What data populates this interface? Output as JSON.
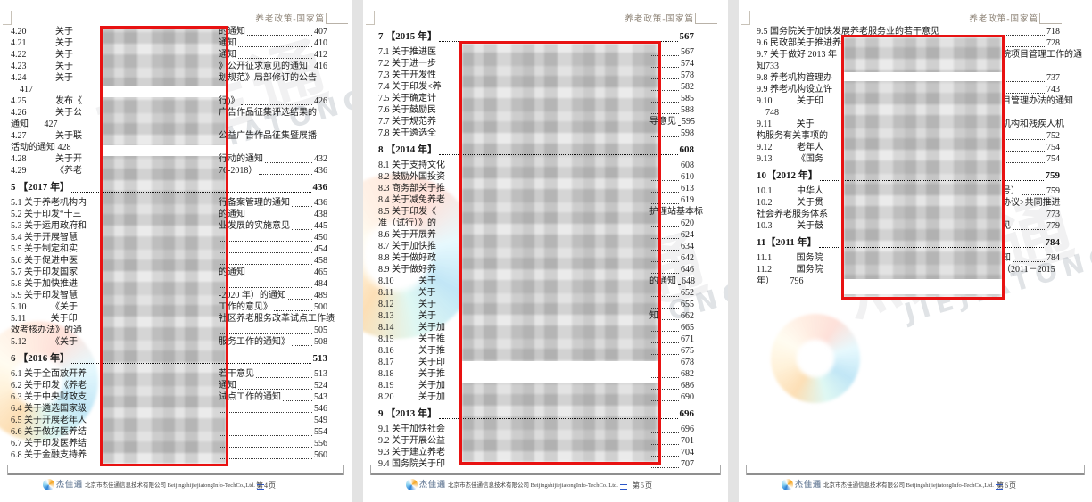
{
  "header_title": "养老政策-国家篇",
  "watermark": {
    "cn": "杰佳通",
    "en": "JIEJIATONG"
  },
  "footer": {
    "logo_cn": "杰佳通",
    "company": "北京市杰佳通信息技术有限公司 BeijingshijiejiatongInfo-TechCo.,Ltd."
  },
  "colors": {
    "annotation_red": "#e81212",
    "footer_link_blue": "#2b56c8",
    "header_gray": "#8b8174",
    "page_background": "#ffffff",
    "desktop_background": "#e3e3e3"
  },
  "pages": [
    {
      "page_label": "第4页",
      "rows": [
        {
          "t": "r",
          "l": "4.20             关于",
          "r": "的通知",
          "pg": "407"
        },
        {
          "t": "r",
          "l": "4.21             关于",
          "r": "通知",
          "pg": "410"
        },
        {
          "t": "r",
          "l": "4.22             关于",
          "r": "通知",
          "pg": "412"
        },
        {
          "t": "r",
          "l": "4.23             关于",
          "r": "》公开征求意见的通知",
          "pg": "416"
        },
        {
          "t": "r",
          "l": "4.24             关于",
          "r": "划规范》局部修订的公告",
          "pg": ""
        },
        {
          "t": "c",
          "l": "    417"
        },
        {
          "t": "r",
          "l": "4.25             发布《",
          "r": "行)》",
          "pg": "426"
        },
        {
          "t": "r",
          "l": "4.26             关于公",
          "r": "广告作品征集评选结果的",
          "pg": ""
        },
        {
          "t": "c",
          "l": "通知       427"
        },
        {
          "t": "r",
          "l": "4.27             关于联",
          "r": "公益广告作品征集暨展播",
          "pg": ""
        },
        {
          "t": "c",
          "l": "活动的通知 428"
        },
        {
          "t": "r",
          "l": "4.28             关于开",
          "r": "行动的通知",
          "pg": "432"
        },
        {
          "t": "r",
          "l": "4.29             《养老",
          "r": "76-2018）",
          "pg": "436"
        },
        {
          "t": "h",
          "l": "5 【2017 年】",
          "pg": "436"
        },
        {
          "t": "r",
          "l": "5.1 关于养老机构内",
          "r": "行备案管理的通知",
          "pg": "436"
        },
        {
          "t": "r",
          "l": "5.2 关于印发“十三",
          "r": "的通知",
          "pg": "438"
        },
        {
          "t": "r",
          "l": "5.3 关于运用政府和",
          "r": "业发展的实施意见",
          "pg": "445"
        },
        {
          "t": "r",
          "l": "5.4 关于开展智慧",
          "r": "",
          "pg": "450"
        },
        {
          "t": "r",
          "l": "5.5 关于制定和实",
          "r": "",
          "pg": "454"
        },
        {
          "t": "r",
          "l": "5.6 关于促进中医",
          "r": "",
          "pg": "458"
        },
        {
          "t": "r",
          "l": "5.7 关于印发国家",
          "r": "的通知",
          "pg": "465"
        },
        {
          "t": "r",
          "l": "5.8 关于加快推进",
          "r": "",
          "pg": "484"
        },
        {
          "t": "r",
          "l": "5.9 关于印发智慧",
          "r": "-2020 年）的通知",
          "pg": "489"
        },
        {
          "t": "r",
          "l": "5.10           《关于",
          "r": "工作的意见》",
          "pg": "500"
        },
        {
          "t": "r",
          "l": "5.11           关于印",
          "r": "社区养老服务改革试点工作绩",
          "pg": ""
        },
        {
          "t": "r",
          "l": "效考核办法》的通",
          "r": "",
          "pg": "505"
        },
        {
          "t": "r",
          "l": "5.12           《关于",
          "r": "服务工作的通知》",
          "pg": "508"
        },
        {
          "t": "h",
          "l": "6 【2016 年】",
          "pg": "513"
        },
        {
          "t": "r",
          "l": "6.1 关于全面放开养",
          "r": "若干意见",
          "pg": "513"
        },
        {
          "t": "r",
          "l": "6.2 关于印发《养老",
          "r": "通知",
          "pg": "524"
        },
        {
          "t": "r",
          "l": "6.3 关于中央财政支",
          "r": "试点工作的通知",
          "pg": "543"
        },
        {
          "t": "r",
          "l": "6.4 关于遴选国家级",
          "r": "",
          "pg": "546"
        },
        {
          "t": "r",
          "l": "6.5 关于开展老年人",
          "r": "",
          "pg": "549"
        },
        {
          "t": "r",
          "l": "6.6 关于做好医养结",
          "r": "",
          "pg": "554"
        },
        {
          "t": "r",
          "l": "6.7 关于印发医养结",
          "r": "",
          "pg": "556"
        },
        {
          "t": "r",
          "l": "6.8 关于金融支持养",
          "r": "",
          "pg": "560"
        }
      ]
    },
    {
      "page_label": "第5页",
      "rows": [
        {
          "t": "h",
          "l": "7 【2015 年】",
          "pg": "567"
        },
        {
          "t": "r",
          "l": "7.1 关于推进医",
          "r": "",
          "pg": "567"
        },
        {
          "t": "r",
          "l": "7.2 关于进一步",
          "r": "",
          "pg": "574"
        },
        {
          "t": "r",
          "l": "7.3 关于开发性",
          "r": "",
          "pg": "578"
        },
        {
          "t": "r",
          "l": "7.4 关于印发<养",
          "r": "",
          "pg": "582"
        },
        {
          "t": "r",
          "l": "7.5 关于确定计",
          "r": "",
          "pg": "585"
        },
        {
          "t": "r",
          "l": "7.6 关于鼓励民",
          "r": "",
          "pg": "588"
        },
        {
          "t": "r",
          "l": "7.7 关于规范养",
          "r": "导意见",
          "pg": "595"
        },
        {
          "t": "r",
          "l": "7.8 关于遴选全",
          "r": "",
          "pg": "598"
        },
        {
          "t": "h",
          "l": "8 【2014 年】",
          "pg": "608"
        },
        {
          "t": "r",
          "l": "8.1 关于支持文化",
          "r": "",
          "pg": "608"
        },
        {
          "t": "r",
          "l": "8.2 鼓励外国投资",
          "r": "",
          "pg": "610"
        },
        {
          "t": "r",
          "l": "8.3 商务部关于推",
          "r": "",
          "pg": "613"
        },
        {
          "t": "r",
          "l": "8.4 关于减免养老",
          "r": "",
          "pg": "619"
        },
        {
          "t": "r",
          "l": "8.5 关于印发《",
          "r": "护理站基本标",
          "pg": ""
        },
        {
          "t": "r",
          "l": "准（试行）》的",
          "r": "",
          "pg": "620"
        },
        {
          "t": "r",
          "l": "8.6 关于开展养",
          "r": "",
          "pg": "624"
        },
        {
          "t": "r",
          "l": "8.7 关于加快推",
          "r": "",
          "pg": "634"
        },
        {
          "t": "r",
          "l": "8.8 关于做好政",
          "r": "",
          "pg": "642"
        },
        {
          "t": "r",
          "l": "8.9 关于做好养",
          "r": "",
          "pg": "646"
        },
        {
          "t": "r",
          "l": "8.10           关于",
          "r": "的通知",
          "pg": "648"
        },
        {
          "t": "r",
          "l": "8.11           关于",
          "r": "",
          "pg": "652"
        },
        {
          "t": "r",
          "l": "8.12           关于",
          "r": "",
          "pg": "655"
        },
        {
          "t": "r",
          "l": "8.13           关于",
          "r": "知",
          "pg": "662"
        },
        {
          "t": "r",
          "l": "8.14           关于加",
          "r": "",
          "pg": "665"
        },
        {
          "t": "r",
          "l": "8.15           关于推",
          "r": "",
          "pg": "671"
        },
        {
          "t": "r",
          "l": "8.16           关于推",
          "r": "",
          "pg": "675"
        },
        {
          "t": "r",
          "l": "8.17           关于印",
          "r": "",
          "pg": "678"
        },
        {
          "t": "r",
          "l": "8.18           关于推",
          "r": "",
          "pg": "682"
        },
        {
          "t": "r",
          "l": "8.19           关于加",
          "r": "",
          "pg": "686"
        },
        {
          "t": "r",
          "l": "8.20           关于加",
          "r": "",
          "pg": "690"
        },
        {
          "t": "h",
          "l": "9 【2013 年】",
          "pg": "696"
        },
        {
          "t": "r",
          "l": "9.1 关于加快社会",
          "r": "",
          "pg": "696"
        },
        {
          "t": "r",
          "l": "9.2 关于开展公益",
          "r": "",
          "pg": "701"
        },
        {
          "t": "r",
          "l": "9.3 关于建立养老",
          "r": "",
          "pg": "704"
        },
        {
          "t": "r",
          "l": "9.4 国务院关于印",
          "r": "",
          "pg": "707"
        }
      ]
    },
    {
      "page_label": "第6页",
      "rows": [
        {
          "t": "f",
          "l": "9.5 国务院关于加快发展养老服务业的若干意见",
          "pg": "718"
        },
        {
          "t": "r",
          "l": "9.6 民政部关于推进养",
          "r": "",
          "pg": "728"
        },
        {
          "t": "r",
          "l": "9.7 关于做好 2013 年",
          "r": "院项目管理工作的通",
          "pg": ""
        },
        {
          "t": "c",
          "l": "知733"
        },
        {
          "t": "r",
          "l": "9.8 养老机构管理办",
          "r": "",
          "pg": "737"
        },
        {
          "t": "r",
          "l": "9.9 养老机构设立许",
          "r": "",
          "pg": "743"
        },
        {
          "t": "r",
          "l": "9.10           关于印",
          "r": "目管理办法的通知",
          "pg": ""
        },
        {
          "t": "c",
          "l": "    748"
        },
        {
          "t": "r",
          "l": "9.11           关于",
          "r": "机构和残疾人机",
          "pg": ""
        },
        {
          "t": "r",
          "l": "构服务有关事项的",
          "r": "",
          "pg": "752"
        },
        {
          "t": "r",
          "l": "9.12           老年人",
          "r": "",
          "pg": "754"
        },
        {
          "t": "r",
          "l": "9.13           《国务",
          "r": "",
          "pg": "754"
        },
        {
          "t": "h",
          "l": "10【2012 年】",
          "pg": "759"
        },
        {
          "t": "r",
          "l": "10.1           中华人",
          "r": "号）",
          "pg": "759"
        },
        {
          "t": "r",
          "l": "10.2           关于贯",
          "r": "协议>共同推进",
          "pg": ""
        },
        {
          "t": "r",
          "l": "社会养老服务体系",
          "r": "",
          "pg": "773"
        },
        {
          "t": "r",
          "l": "10.3           关于鼓",
          "r": "见",
          "pg": "779"
        },
        {
          "t": "h",
          "l": "11【2011 年】",
          "pg": "784"
        },
        {
          "t": "r",
          "l": "11.1           国务院",
          "r": "知",
          "pg": "784"
        },
        {
          "t": "r",
          "l": "11.2           国务院",
          "r": "（2011－2015",
          "pg": ""
        },
        {
          "t": "c",
          "l": "年）       796"
        }
      ]
    }
  ]
}
